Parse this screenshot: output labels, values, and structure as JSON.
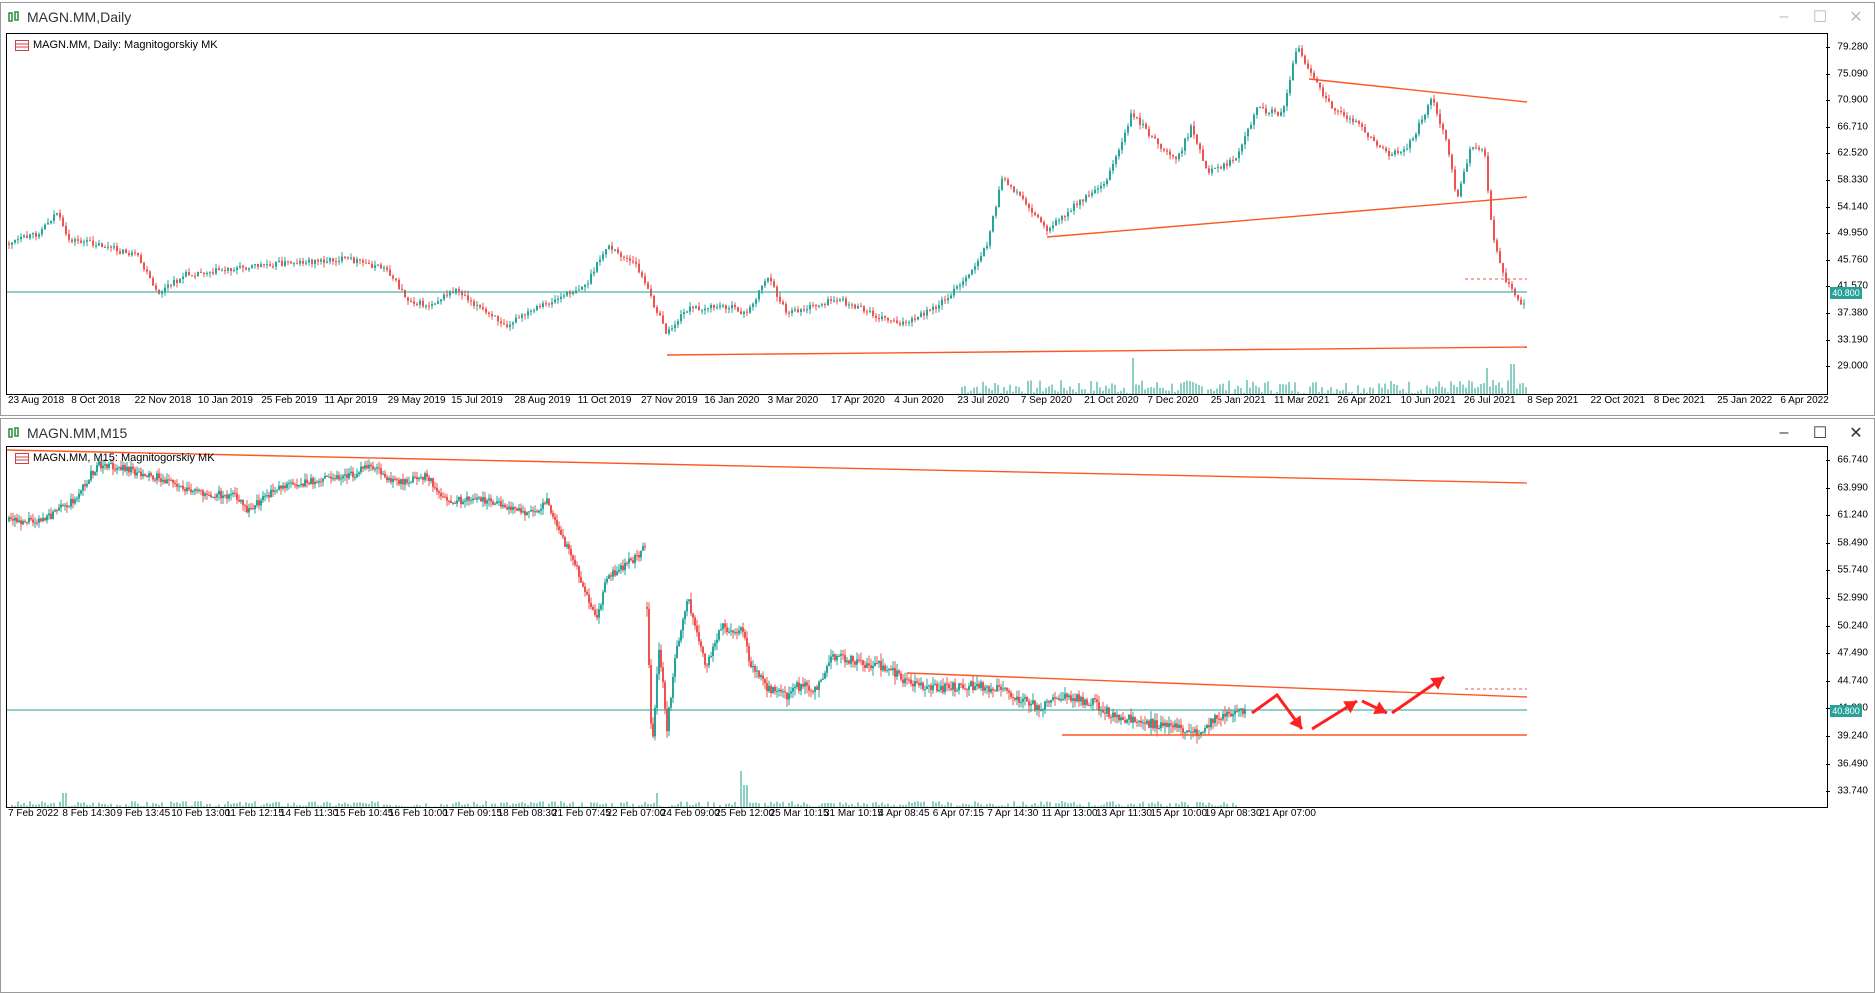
{
  "daily": {
    "title": "MAGN.MM,Daily",
    "legend": "MAGN.MM, Daily:  Magnitogorskiy MK",
    "price_tag": "40.800",
    "y_ticks": [
      "79.280",
      "75.090",
      "70.900",
      "66.710",
      "62.520",
      "58.330",
      "54.140",
      "49.950",
      "45.760",
      "41.570",
      "37.380",
      "33.190",
      "29.000"
    ],
    "x_ticks": [
      "23 Aug 2018",
      "8 Oct 2018",
      "22 Nov 2018",
      "10 Jan 2019",
      "25 Feb 2019",
      "11 Apr 2019",
      "29 May 2019",
      "15 Jul 2019",
      "28 Aug 2019",
      "11 Oct 2019",
      "27 Nov 2019",
      "16 Jan 2020",
      "3 Mar 2020",
      "17 Apr 2020",
      "4 Jun 2020",
      "23 Jul 2020",
      "7 Sep 2020",
      "21 Oct 2020",
      "7 Dec 2020",
      "25 Jan 2021",
      "11 Mar 2021",
      "26 Apr 2021",
      "10 Jun 2021",
      "26 Jul 2021",
      "8 Sep 2021",
      "22 Oct 2021",
      "8 Dec 2021",
      "25 Jan 2022",
      "6 Apr 2022"
    ]
  },
  "m15": {
    "title": "MAGN.MM,M15",
    "legend": "MAGN.MM, M15:  Magnitogorskiy MK",
    "price_tag": "40.800",
    "y_ticks": [
      "66.740",
      "63.990",
      "61.240",
      "58.490",
      "55.740",
      "52.990",
      "50.240",
      "47.490",
      "44.740",
      "41.990",
      "39.240",
      "36.490",
      "33.740"
    ],
    "x_ticks": [
      "7 Feb 2022",
      "8 Feb 14:30",
      "9 Feb 13:45",
      "10 Feb 13:00",
      "11 Feb 12:15",
      "14 Feb 11:30",
      "15 Feb 10:45",
      "16 Feb 10:00",
      "17 Feb 09:15",
      "18 Feb 08:30",
      "21 Feb 07:45",
      "22 Feb 07:00",
      "24 Feb 09:00",
      "25 Feb 12:00",
      "25 Mar 10:15",
      "31 Mar 10:15",
      "4 Apr 08:45",
      "6 Apr 07:15",
      "7 Apr 14:30",
      "11 Apr 13:00",
      "13 Apr 11:30",
      "15 Apr 10:00",
      "19 Apr 08:30",
      "21 Apr 07:00"
    ]
  },
  "window_buttons": {
    "minimize": "–",
    "maximize": "☐",
    "close": "✕"
  },
  "colors": {
    "up": "#26a69a",
    "down": "#ef5350",
    "trend": "#ff5722",
    "level": "#20a090"
  }
}
